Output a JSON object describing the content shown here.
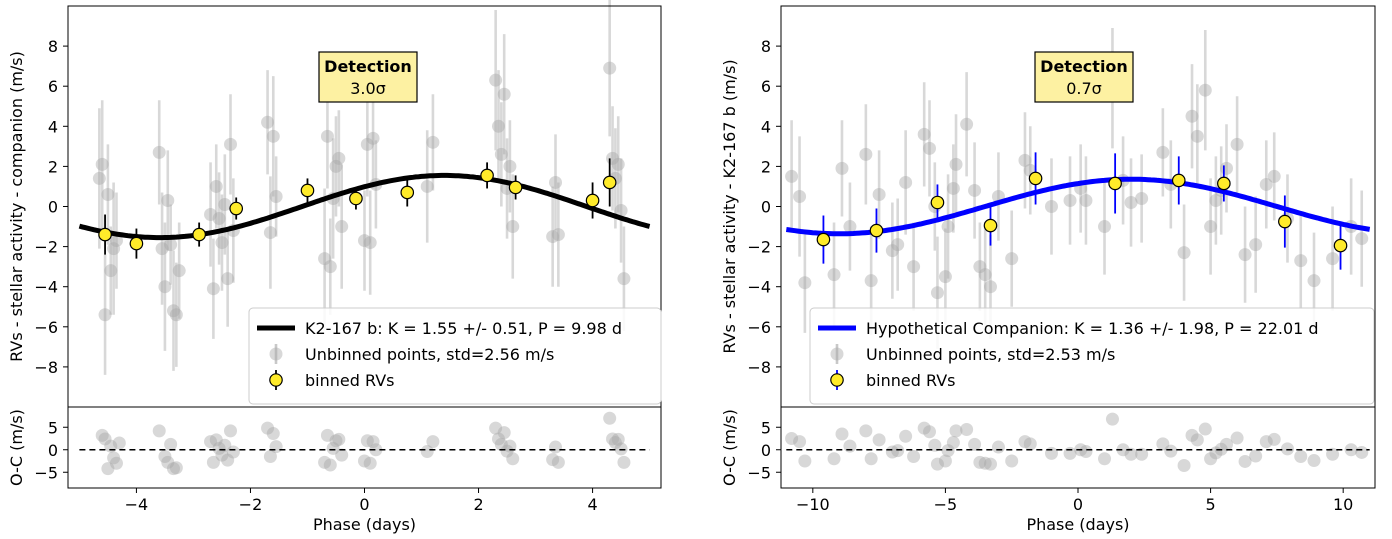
{
  "chart_data": [
    {
      "type": "scatter",
      "title": "",
      "ylabel": "RVs  - stellar activity - companion (m/s)",
      "xlabel": "Phase (days)",
      "residual_ylabel": "O-C (m/s)",
      "xlim": [
        -5.2,
        5.2
      ],
      "ylim": [
        -10,
        10
      ],
      "residual_ylim": [
        -8.5,
        9.5
      ],
      "xticks": [
        -4,
        -2,
        0,
        2,
        4
      ],
      "xtick_labels": [
        "−4",
        "−2",
        "0",
        "2",
        "4"
      ],
      "yticks": [
        8,
        6,
        4,
        2,
        0,
        -2,
        -4,
        -6,
        -8
      ],
      "ytick_labels": [
        "8",
        "6",
        "4",
        "2",
        "0",
        "−2",
        "−4",
        "−6",
        "−8"
      ],
      "residual_yticks": [
        5,
        0,
        -5
      ],
      "residual_ytick_labels": [
        "5",
        "0",
        "−5"
      ],
      "badge": {
        "title": "Detection",
        "value": "3.0σ"
      },
      "model_color": "#000000",
      "model": {
        "amplitude": 1.55,
        "period": 9.98,
        "center": 1.4,
        "x_range": [
          -5,
          5
        ]
      },
      "legend": {
        "model": "K2-167 b: K = 1.55 +/- 0.51, P = 9.98 d",
        "unbinned": "Unbinned points, std=2.56 m/s",
        "binned": "binned RVs"
      },
      "unbinned": [
        [
          -4.65,
          1.4,
          3.5
        ],
        [
          -4.6,
          2.1,
          3.2
        ],
        [
          -4.55,
          -5.4,
          3.0
        ],
        [
          -4.5,
          0.6,
          2.5
        ],
        [
          -4.45,
          -3.2,
          2.2
        ],
        [
          -4.4,
          -2.1,
          3.3
        ],
        [
          -4.35,
          -1.7,
          2.4
        ],
        [
          -3.6,
          2.7,
          2.6
        ],
        [
          -3.55,
          -2.1,
          2.8
        ],
        [
          -3.5,
          -4.0,
          3.2
        ],
        [
          -3.45,
          0.3,
          2.5
        ],
        [
          -3.4,
          -1.9,
          2.0
        ],
        [
          -3.35,
          -5.2,
          3.0
        ],
        [
          -3.3,
          -5.4,
          2.6
        ],
        [
          -3.25,
          -3.2,
          2.4
        ],
        [
          -2.7,
          -0.4,
          2.6
        ],
        [
          -2.65,
          -4.1,
          2.5
        ],
        [
          -2.6,
          1.0,
          2.1
        ],
        [
          -2.55,
          -0.6,
          2.3
        ],
        [
          -2.5,
          -1.8,
          2.4
        ],
        [
          -2.45,
          0.1,
          2.5
        ],
        [
          -2.4,
          -3.6,
          2.4
        ],
        [
          -2.35,
          3.1,
          2.5
        ],
        [
          -2.3,
          -1.2,
          2.6
        ],
        [
          -1.7,
          4.2,
          2.6
        ],
        [
          -1.65,
          -1.3,
          2.8
        ],
        [
          -1.6,
          3.5,
          3.0
        ],
        [
          -1.55,
          0.5,
          2.0
        ],
        [
          -0.7,
          -2.6,
          3.5
        ],
        [
          -0.65,
          3.5,
          2.6
        ],
        [
          -0.6,
          -3.0,
          2.4
        ],
        [
          -0.55,
          0.4,
          3.0
        ],
        [
          -0.5,
          2.0,
          2.5
        ],
        [
          -0.45,
          2.4,
          2.4
        ],
        [
          -0.4,
          -1.0,
          3.1
        ],
        [
          0.0,
          -1.7,
          2.5
        ],
        [
          0.05,
          3.1,
          2.6
        ],
        [
          0.1,
          -1.8,
          2.6
        ],
        [
          0.15,
          3.4,
          2.5
        ],
        [
          0.2,
          1.1,
          2.2
        ],
        [
          1.1,
          1.0,
          2.8
        ],
        [
          1.2,
          3.2,
          2.4
        ],
        [
          2.3,
          6.3,
          3.5
        ],
        [
          2.35,
          4.0,
          2.8
        ],
        [
          2.4,
          2.6,
          2.6
        ],
        [
          2.45,
          5.6,
          3.0
        ],
        [
          2.5,
          0.9,
          2.5
        ],
        [
          2.55,
          2.0,
          2.3
        ],
        [
          2.6,
          -1.0,
          2.6
        ],
        [
          3.3,
          -1.5,
          2.5
        ],
        [
          3.35,
          1.2,
          2.4
        ],
        [
          3.4,
          -1.4,
          2.6
        ],
        [
          4.3,
          6.9,
          3.4
        ],
        [
          4.35,
          2.4,
          2.6
        ],
        [
          4.4,
          1.4,
          2.5
        ],
        [
          4.45,
          2.1,
          2.4
        ],
        [
          4.5,
          -0.2,
          2.6
        ],
        [
          4.55,
          -3.6,
          2.6
        ]
      ],
      "binned": [
        [
          -4.55,
          -1.4,
          1.0
        ],
        [
          -4.0,
          -1.85,
          0.75
        ],
        [
          -2.9,
          -1.4,
          0.6
        ],
        [
          -2.25,
          -0.1,
          0.55
        ],
        [
          -1.0,
          0.8,
          0.6
        ],
        [
          -0.15,
          0.4,
          0.55
        ],
        [
          0.75,
          0.7,
          0.7
        ],
        [
          2.15,
          1.55,
          0.65
        ],
        [
          2.65,
          0.95,
          0.6
        ],
        [
          4.0,
          0.3,
          0.9
        ],
        [
          4.3,
          1.2,
          1.2
        ]
      ],
      "residuals": [
        [
          -4.6,
          3.2
        ],
        [
          -4.55,
          2.4
        ],
        [
          -4.5,
          -4.2
        ],
        [
          -4.45,
          0.8
        ],
        [
          -4.4,
          -1.8
        ],
        [
          -4.35,
          -3.0
        ],
        [
          -4.3,
          1.5
        ],
        [
          -3.6,
          4.2
        ],
        [
          -3.5,
          -1.5
        ],
        [
          -3.45,
          -2.8
        ],
        [
          -3.4,
          1.2
        ],
        [
          -3.35,
          -4.2
        ],
        [
          -3.3,
          -4.0
        ],
        [
          -2.7,
          1.8
        ],
        [
          -2.65,
          -2.8
        ],
        [
          -2.6,
          2.2
        ],
        [
          -2.55,
          0.3
        ],
        [
          -2.5,
          -1.2
        ],
        [
          -2.45,
          1.0
        ],
        [
          -2.4,
          -2.3
        ],
        [
          -2.35,
          4.2
        ],
        [
          -2.3,
          -0.5
        ],
        [
          -1.7,
          4.8
        ],
        [
          -1.65,
          -1.5
        ],
        [
          -1.6,
          3.6
        ],
        [
          -1.55,
          0.7
        ],
        [
          -0.7,
          -2.8
        ],
        [
          -0.65,
          3.2
        ],
        [
          -0.6,
          -3.4
        ],
        [
          -0.55,
          0.3
        ],
        [
          -0.5,
          2.0
        ],
        [
          -0.45,
          2.3
        ],
        [
          -0.4,
          -1.2
        ],
        [
          0.0,
          -2.5
        ],
        [
          0.05,
          2.0
        ],
        [
          0.1,
          -3.0
        ],
        [
          0.15,
          1.8
        ],
        [
          0.2,
          0.0
        ],
        [
          1.1,
          -0.4
        ],
        [
          1.2,
          1.8
        ],
        [
          2.3,
          4.8
        ],
        [
          2.35,
          2.4
        ],
        [
          2.4,
          1.2
        ],
        [
          2.45,
          3.8
        ],
        [
          2.5,
          -0.3
        ],
        [
          2.55,
          0.8
        ],
        [
          2.6,
          -2.0
        ],
        [
          3.3,
          -2.2
        ],
        [
          3.35,
          0.6
        ],
        [
          3.4,
          -2.8
        ],
        [
          4.3,
          7.0
        ],
        [
          4.35,
          2.4
        ],
        [
          4.4,
          1.6
        ],
        [
          4.45,
          2.3
        ],
        [
          4.5,
          0.2
        ],
        [
          4.55,
          -2.8
        ]
      ]
    },
    {
      "type": "scatter",
      "title": "",
      "ylabel": "RVs  - stellar activity - K2-167 b (m/s)",
      "xlabel": "Phase (days)",
      "residual_ylabel": "O-C (m/s)",
      "xlim": [
        -11.2,
        11.2
      ],
      "ylim": [
        -10,
        10
      ],
      "residual_ylim": [
        -8.5,
        9.5
      ],
      "xticks": [
        -10,
        -5,
        0,
        5,
        10
      ],
      "xtick_labels": [
        "−10",
        "−5",
        "0",
        "5",
        "10"
      ],
      "yticks": [
        8,
        6,
        4,
        2,
        0,
        -2,
        -4,
        -6,
        -8
      ],
      "ytick_labels": [
        "8",
        "6",
        "4",
        "2",
        "0",
        "−2",
        "−4",
        "−6",
        "−8"
      ],
      "residual_yticks": [
        5,
        0,
        -5
      ],
      "residual_ytick_labels": [
        "5",
        "0",
        "−5"
      ],
      "badge": {
        "title": "Detection",
        "value": "0.7σ"
      },
      "model_color": "#0000ff",
      "model": {
        "amplitude": 1.36,
        "period": 22.01,
        "center": 2.0,
        "x_range": [
          -11,
          11
        ]
      },
      "legend": {
        "model": "Hypothetical Companion: K = 1.36 +/- 1.98, P = 22.01 d",
        "unbinned": "Unbinned points, std=2.53 m/s",
        "binned": "binned RVs"
      },
      "unbinned": [
        [
          -10.8,
          1.5,
          2.8
        ],
        [
          -10.5,
          0.5,
          3.0
        ],
        [
          -10.3,
          -3.8,
          2.5
        ],
        [
          -9.2,
          -3.4,
          2.6
        ],
        [
          -8.9,
          1.9,
          2.4
        ],
        [
          -8.6,
          -1.0,
          2.2
        ],
        [
          -8.0,
          2.6,
          2.5
        ],
        [
          -7.8,
          -3.7,
          2.7
        ],
        [
          -7.5,
          0.6,
          2.2
        ],
        [
          -7.0,
          -2.2,
          2.4
        ],
        [
          -6.8,
          -1.9,
          2.3
        ],
        [
          -6.5,
          1.2,
          2.6
        ],
        [
          -6.2,
          -3.0,
          2.2
        ],
        [
          -5.8,
          3.6,
          2.6
        ],
        [
          -5.6,
          2.9,
          2.4
        ],
        [
          -5.4,
          0.0,
          2.2
        ],
        [
          -5.3,
          -4.3,
          2.8
        ],
        [
          -5.0,
          -3.5,
          2.4
        ],
        [
          -4.9,
          -1.0,
          2.6
        ],
        [
          -4.7,
          0.9,
          2.2
        ],
        [
          -4.6,
          2.1,
          2.5
        ],
        [
          -4.2,
          4.1,
          2.6
        ],
        [
          -3.9,
          0.8,
          2.4
        ],
        [
          -3.7,
          -3.0,
          2.2
        ],
        [
          -3.5,
          -3.4,
          2.6
        ],
        [
          -3.3,
          -4.0,
          2.6
        ],
        [
          -3.0,
          0.5,
          2.2
        ],
        [
          -2.5,
          -2.6,
          2.4
        ],
        [
          -2.0,
          2.3,
          2.4
        ],
        [
          -1.8,
          1.8,
          2.2
        ],
        [
          -1.0,
          0.0,
          2.4
        ],
        [
          -0.3,
          0.3,
          2.2
        ],
        [
          0.1,
          0.9,
          2.2
        ],
        [
          0.3,
          0.3,
          2.2
        ],
        [
          1.0,
          -1.0,
          2.4
        ],
        [
          1.3,
          5.9,
          3.0
        ],
        [
          1.7,
          1.3,
          2.2
        ],
        [
          2.0,
          0.2,
          2.2
        ],
        [
          2.4,
          0.4,
          2.2
        ],
        [
          3.2,
          2.7,
          2.2
        ],
        [
          3.5,
          1.1,
          2.2
        ],
        [
          4.0,
          -2.3,
          2.4
        ],
        [
          4.3,
          4.5,
          2.6
        ],
        [
          4.5,
          3.5,
          2.6
        ],
        [
          4.8,
          5.8,
          3.0
        ],
        [
          5.0,
          -1.0,
          2.4
        ],
        [
          5.2,
          0.3,
          2.2
        ],
        [
          5.4,
          0.8,
          2.2
        ],
        [
          5.6,
          1.9,
          2.2
        ],
        [
          6.0,
          3.1,
          2.4
        ],
        [
          6.3,
          -2.4,
          2.4
        ],
        [
          6.7,
          -1.9,
          2.4
        ],
        [
          7.1,
          1.1,
          2.2
        ],
        [
          7.4,
          1.5,
          2.2
        ],
        [
          7.9,
          -0.6,
          2.2
        ],
        [
          8.4,
          -2.7,
          2.4
        ],
        [
          8.9,
          -3.7,
          2.4
        ],
        [
          9.6,
          -2.6,
          2.6
        ],
        [
          10.3,
          -1.0,
          2.4
        ],
        [
          10.7,
          -1.6,
          2.4
        ]
      ],
      "binned": [
        [
          -9.6,
          -1.65,
          1.2
        ],
        [
          -7.6,
          -1.2,
          1.1
        ],
        [
          -5.3,
          0.2,
          0.9
        ],
        [
          -3.3,
          -0.95,
          1.0
        ],
        [
          -1.6,
          1.4,
          1.3
        ],
        [
          1.4,
          1.15,
          1.5
        ],
        [
          3.8,
          1.3,
          1.2
        ],
        [
          5.5,
          1.15,
          0.9
        ],
        [
          7.8,
          -0.75,
          1.3
        ],
        [
          9.9,
          -1.95,
          1.2
        ]
      ],
      "residuals": [
        [
          -10.8,
          2.5
        ],
        [
          -10.5,
          1.8
        ],
        [
          -10.3,
          -2.5
        ],
        [
          -9.2,
          -2.0
        ],
        [
          -8.9,
          3.5
        ],
        [
          -8.6,
          0.8
        ],
        [
          -8.0,
          4.2
        ],
        [
          -7.8,
          -2.0
        ],
        [
          -7.5,
          2.2
        ],
        [
          -7.0,
          -0.5
        ],
        [
          -6.8,
          -0.2
        ],
        [
          -6.5,
          3.0
        ],
        [
          -6.2,
          -1.5
        ],
        [
          -5.8,
          4.8
        ],
        [
          -5.6,
          4.0
        ],
        [
          -5.4,
          1.0
        ],
        [
          -5.3,
          -3.2
        ],
        [
          -5.0,
          -2.5
        ],
        [
          -4.9,
          -0.2
        ],
        [
          -4.7,
          1.6
        ],
        [
          -4.6,
          4.2
        ],
        [
          -4.2,
          4.5
        ],
        [
          -3.9,
          1.2
        ],
        [
          -3.7,
          -2.8
        ],
        [
          -3.5,
          -3.0
        ],
        [
          -3.3,
          -3.2
        ],
        [
          -3.0,
          0.6
        ],
        [
          -2.5,
          -2.5
        ],
        [
          -2.0,
          1.8
        ],
        [
          -1.8,
          1.3
        ],
        [
          -1.0,
          -0.8
        ],
        [
          -0.3,
          -0.8
        ],
        [
          0.1,
          0.0
        ],
        [
          0.3,
          -0.4
        ],
        [
          1.0,
          -2.0
        ],
        [
          1.3,
          6.8
        ],
        [
          1.7,
          0.0
        ],
        [
          2.0,
          -1.0
        ],
        [
          2.4,
          -1.0
        ],
        [
          3.2,
          1.3
        ],
        [
          3.5,
          -0.3
        ],
        [
          4.0,
          -3.5
        ],
        [
          4.3,
          3.2
        ],
        [
          4.5,
          2.2
        ],
        [
          4.8,
          4.6
        ],
        [
          5.0,
          -2.0
        ],
        [
          5.2,
          -0.7
        ],
        [
          5.4,
          0.1
        ],
        [
          5.6,
          1.2
        ],
        [
          6.0,
          2.6
        ],
        [
          6.3,
          -2.6
        ],
        [
          6.7,
          -1.4
        ],
        [
          7.1,
          1.8
        ],
        [
          7.4,
          2.3
        ],
        [
          7.9,
          0.2
        ],
        [
          8.4,
          -1.5
        ],
        [
          8.9,
          -2.4
        ],
        [
          9.6,
          -1.0
        ],
        [
          10.3,
          0.0
        ],
        [
          10.7,
          -0.6
        ]
      ]
    }
  ]
}
